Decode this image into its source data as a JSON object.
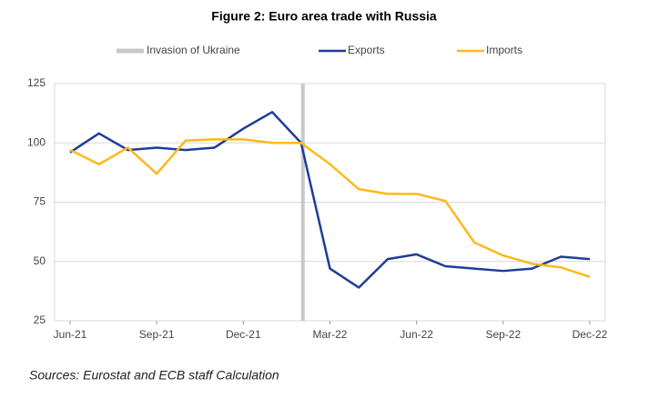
{
  "chart_data": {
    "type": "line",
    "title": "Figure 2: Euro area trade with Russia",
    "source": "Sources: Eurostat and ECB staff Calculation",
    "categories": [
      "Jun-21",
      null,
      null,
      "Sep-21",
      null,
      null,
      "Dec-21",
      null,
      null,
      "Mar-22",
      null,
      null,
      "Jun-22",
      null,
      null,
      "Sep-22",
      null,
      null,
      "Dec-22"
    ],
    "series": [
      {
        "name": "Exports",
        "color": "#1f3c99",
        "values": [
          96,
          104,
          97,
          98,
          97,
          98,
          106,
          113,
          100,
          47,
          39,
          51,
          53,
          48,
          47,
          46,
          47,
          52,
          51
        ]
      },
      {
        "name": "Imports",
        "color": "#ffb81c",
        "values": [
          97,
          91,
          98,
          87,
          101,
          101.5,
          101.5,
          100,
          100,
          91,
          80.5,
          78.5,
          78.5,
          75.5,
          58,
          52.5,
          49,
          47.5,
          43.5
        ]
      }
    ],
    "annotations": [
      {
        "text": "Invasion of Ukraine",
        "x": 8,
        "color": "#c8c8c8"
      }
    ],
    "ylim": [
      25,
      125
    ],
    "yticks": [
      25,
      50,
      75,
      100,
      125
    ],
    "grid": true
  }
}
